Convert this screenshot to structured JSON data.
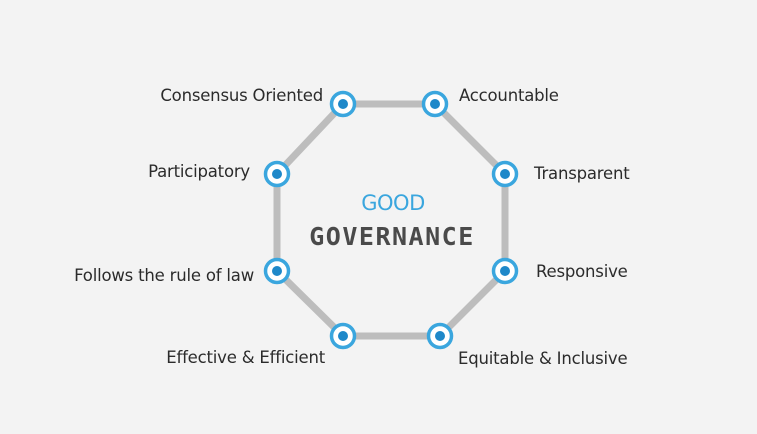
{
  "title": {
    "line1": "GOOD",
    "line2": "GOVERNANCE"
  },
  "principles": [
    {
      "id": "consensus-oriented",
      "label": "Consensus Oriented"
    },
    {
      "id": "accountable",
      "label": "Accountable"
    },
    {
      "id": "transparent",
      "label": "Transparent"
    },
    {
      "id": "responsive",
      "label": "Responsive"
    },
    {
      "id": "equitable-inclusive",
      "label": "Equitable & Inclusive"
    },
    {
      "id": "effective-efficient",
      "label": "Effective & Efficient"
    },
    {
      "id": "rule-of-law",
      "label": "Follows the rule of law"
    },
    {
      "id": "participatory",
      "label": "Participatory"
    }
  ],
  "colors": {
    "background": "#f3f3f3",
    "octagon_stroke": "#bdbdbd",
    "node_ring": "#3aa6de",
    "node_center": "#1e88c9",
    "title_good": "#3aa6de",
    "title_governance": "#4a4a4a",
    "label_text": "#2b2b2b"
  }
}
